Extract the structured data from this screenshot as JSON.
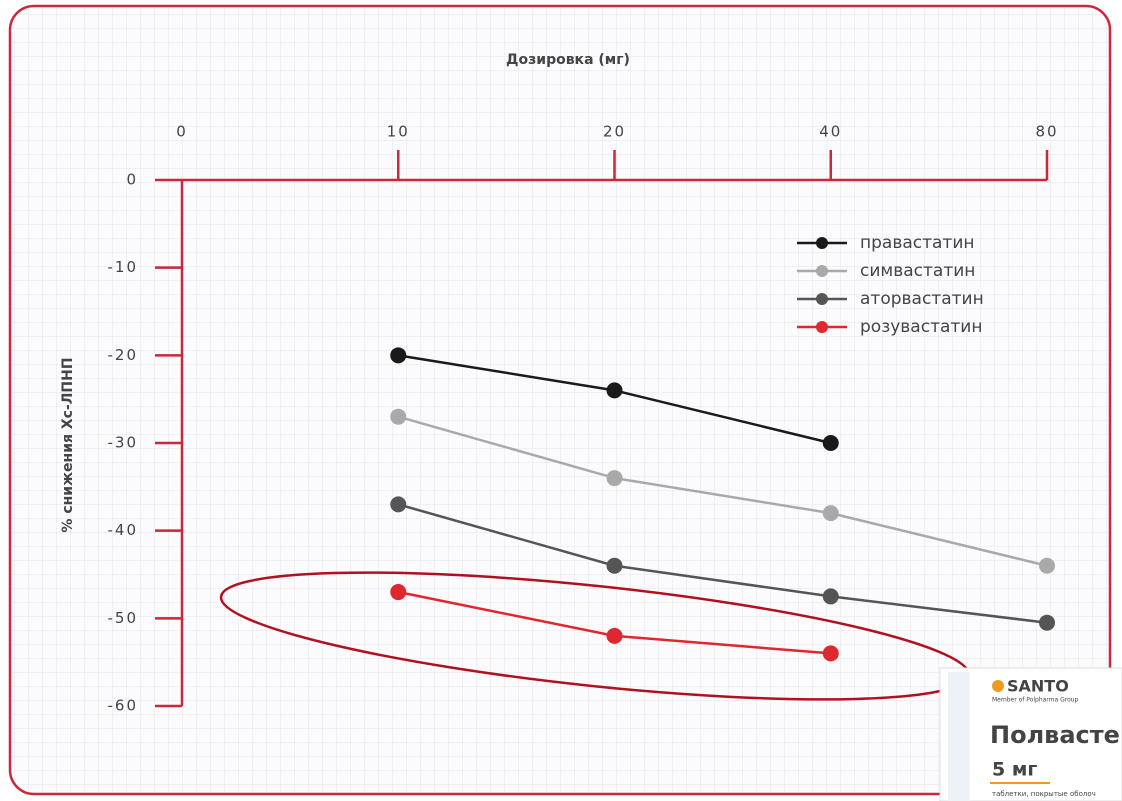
{
  "chart_data": {
    "type": "line",
    "title": "Дозировка (мг)",
    "ylabel": "% снижения Хс-ЛПНП",
    "categories": [
      "0",
      "10",
      "20",
      "40",
      "80"
    ],
    "ylim": [
      -60,
      0
    ],
    "yticks": [
      0,
      -10,
      -20,
      -30,
      -40,
      -50,
      -60
    ],
    "series": [
      {
        "name": "правастатин",
        "color": "#1a1a1a",
        "values": [
          null,
          -20,
          -24,
          -30,
          null
        ]
      },
      {
        "name": "симвастатин",
        "color": "#a9a9a9",
        "values": [
          null,
          -27,
          -34,
          -38,
          -44
        ]
      },
      {
        "name": "аторвастатин",
        "color": "#555555",
        "values": [
          null,
          -37,
          -44,
          -47.5,
          -50.5
        ]
      },
      {
        "name": "розувастатин",
        "color": "#e0262f",
        "values": [
          null,
          -47,
          -52,
          -54,
          null
        ]
      }
    ]
  },
  "product": {
    "brand": "SANTO",
    "group": "Member of Polpharma Group",
    "name": "Полвасте",
    "dose": "5 мг",
    "form": "таблетки, покрытые оболоч"
  }
}
